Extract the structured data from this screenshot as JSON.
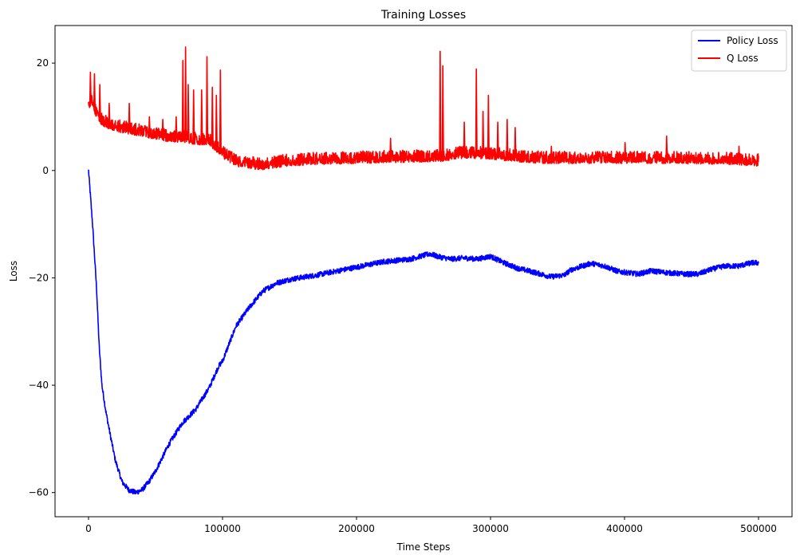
{
  "chart_data": {
    "type": "line",
    "title": "Training Losses",
    "xlabel": "Time Steps",
    "ylabel": "Loss",
    "xlim": [
      -25000,
      525000
    ],
    "ylim": [
      -64.5,
      27
    ],
    "xticks": [
      0,
      100000,
      200000,
      300000,
      400000,
      500000
    ],
    "xtick_labels": [
      "0",
      "100000",
      "200000",
      "300000",
      "400000",
      "500000"
    ],
    "yticks": [
      -60,
      -40,
      -20,
      0,
      20
    ],
    "ytick_labels": [
      "−60",
      "−40",
      "−20",
      "0",
      "20"
    ],
    "grid": false,
    "legend": "top-right",
    "series": [
      {
        "name": "Policy Loss",
        "color": "#0000ff",
        "x": [
          0,
          3000,
          6000,
          8000,
          10000,
          13000,
          16000,
          20000,
          25000,
          30000,
          35000,
          40000,
          45000,
          50000,
          60000,
          70000,
          80000,
          90000,
          97000,
          100000,
          110000,
          120000,
          130000,
          140000,
          150000,
          170000,
          200000,
          220000,
          240000,
          255000,
          260000,
          270000,
          280000,
          290000,
          300000,
          310000,
          320000,
          330000,
          345000,
          355000,
          360000,
          375000,
          385000,
          395000,
          410000,
          420000,
          430000,
          445000,
          455000,
          465000,
          475000,
          485000,
          495000,
          500000
        ],
        "y": [
          0,
          -10,
          -22,
          -33,
          -40,
          -45,
          -49,
          -54,
          -58,
          -59.5,
          -60,
          -59.5,
          -58,
          -56,
          -51,
          -47,
          -44.5,
          -40.5,
          -36.5,
          -35.5,
          -29,
          -25.5,
          -22.5,
          -21,
          -20.3,
          -19.5,
          -18,
          -17,
          -16.5,
          -15.5,
          -16,
          -16.5,
          -16.3,
          -16.5,
          -16,
          -17.2,
          -18.2,
          -18.8,
          -19.8,
          -19.5,
          -18.5,
          -17.3,
          -17.8,
          -18.8,
          -19.3,
          -18.7,
          -19,
          -19.3,
          -19.3,
          -18.4,
          -17.8,
          -17.8,
          -17.2,
          -17.2
        ],
        "noise": 0.5
      },
      {
        "name": "Q Loss",
        "color": "#ff0000",
        "x": [
          0,
          2000,
          5000,
          10000,
          20000,
          30000,
          40000,
          50000,
          60000,
          70000,
          80000,
          90000,
          100000,
          110000,
          120000,
          130000,
          140000,
          150000,
          170000,
          200000,
          230000,
          260000,
          280000,
          300000,
          320000,
          340000,
          360000,
          380000,
          400000,
          420000,
          440000,
          460000,
          480000,
          500000
        ],
        "y": [
          12,
          13,
          11,
          9,
          8,
          7.5,
          7,
          6.5,
          6,
          6,
          5.5,
          5.5,
          3,
          1.5,
          1,
          0.8,
          1.2,
          1.5,
          1.8,
          2,
          2.2,
          2.3,
          3,
          2.8,
          2.3,
          2,
          2,
          2,
          2,
          2,
          2,
          1.9,
          1.8,
          1.5
        ],
        "noise": 1.6,
        "spikes": [
          {
            "x": 1000,
            "y": 18.3
          },
          {
            "x": 4000,
            "y": 18
          },
          {
            "x": 8000,
            "y": 16
          },
          {
            "x": 15000,
            "y": 12.5
          },
          {
            "x": 30000,
            "y": 12.5
          },
          {
            "x": 45000,
            "y": 10
          },
          {
            "x": 55000,
            "y": 9.5
          },
          {
            "x": 65000,
            "y": 10
          },
          {
            "x": 70000,
            "y": 20.5
          },
          {
            "x": 72000,
            "y": 23
          },
          {
            "x": 74000,
            "y": 16
          },
          {
            "x": 78000,
            "y": 15
          },
          {
            "x": 84000,
            "y": 15
          },
          {
            "x": 88000,
            "y": 21.2
          },
          {
            "x": 92000,
            "y": 15.5
          },
          {
            "x": 95000,
            "y": 14
          },
          {
            "x": 98000,
            "y": 18.7
          },
          {
            "x": 225000,
            "y": 6
          },
          {
            "x": 262000,
            "y": 22.2
          },
          {
            "x": 264000,
            "y": 19.5
          },
          {
            "x": 280000,
            "y": 9
          },
          {
            "x": 289000,
            "y": 18.9
          },
          {
            "x": 294000,
            "y": 11
          },
          {
            "x": 298000,
            "y": 14
          },
          {
            "x": 305000,
            "y": 9
          },
          {
            "x": 312000,
            "y": 9.5
          },
          {
            "x": 318000,
            "y": 8
          },
          {
            "x": 345000,
            "y": 4.5
          },
          {
            "x": 400000,
            "y": 5.2
          },
          {
            "x": 431000,
            "y": 6.4
          },
          {
            "x": 485000,
            "y": 4.5
          }
        ]
      }
    ]
  }
}
